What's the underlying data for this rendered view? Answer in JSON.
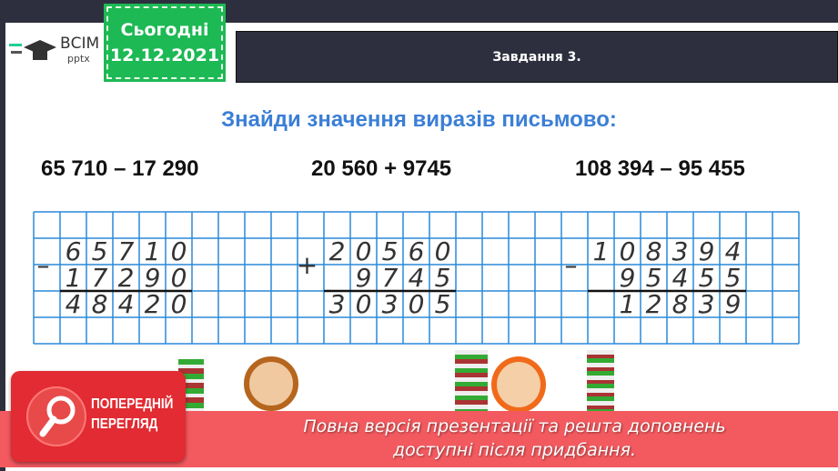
{
  "logo": {
    "brand": "ВСІМ",
    "sub": "pptx"
  },
  "date_badge": {
    "line1": "Сьогодні",
    "line2": "12.12.2021"
  },
  "task_title": "Завдання 3.",
  "heading": "Знайди значення виразів письмово:",
  "expressions": [
    "65 710 – 17 290",
    "20 560 + 9745",
    "108 394 – 95 455"
  ],
  "columns": [
    {
      "op": "–",
      "rows": [
        "65710",
        "17290",
        "48420"
      ]
    },
    {
      "op": "+",
      "rows": [
        "20560",
        "9745",
        "30305"
      ]
    },
    {
      "op": "–",
      "rows": [
        "108394",
        "95455",
        "12839"
      ]
    }
  ],
  "preview": {
    "line1": "ПОПЕРЕДНІЙ",
    "line2": "ПЕРЕГЛЯД",
    "icon": "magnifier-icon"
  },
  "banner": {
    "line1": "Повна версія презентації та решта доповнень",
    "line2": "доступні після придбання."
  },
  "colors": {
    "grid": "#2a8ad8",
    "heading": "#3b7fd6",
    "date": "#1db954",
    "banner": "#f25a5f"
  }
}
